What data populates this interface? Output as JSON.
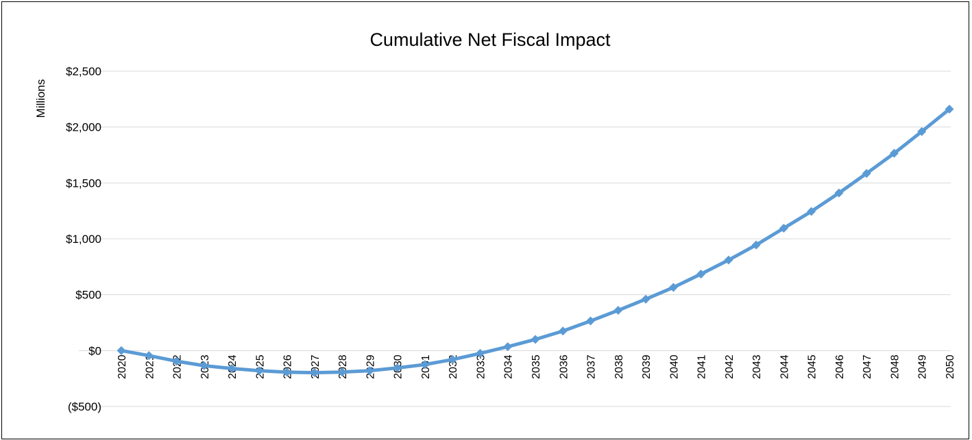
{
  "chart_data": {
    "type": "line",
    "title": "Cumulative Net Fiscal Impact",
    "xlabel": "",
    "ylabel": "Millions",
    "ylim": [
      -500,
      2500
    ],
    "y_ticks": [
      -500,
      0,
      500,
      1000,
      1500,
      2000,
      2500
    ],
    "y_tick_labels": [
      "($500)",
      "$0",
      "$500",
      "$1,000",
      "$1,500",
      "$2,000",
      "$2,500"
    ],
    "negative_tick_color": "#ff0000",
    "grid": true,
    "legend": "none",
    "series_color": "#5b9bd5",
    "x": [
      "2020",
      "2021",
      "2022",
      "2023",
      "2024",
      "2025",
      "2026",
      "2027",
      "2028",
      "2029",
      "2030",
      "2031",
      "2032",
      "2033",
      "2034",
      "2035",
      "2036",
      "2037",
      "2038",
      "2039",
      "2040",
      "2041",
      "2042",
      "2043",
      "2044",
      "2045",
      "2046",
      "2047",
      "2048",
      "2049",
      "2050"
    ],
    "series": [
      {
        "values": [
          0,
          -45,
          -95,
          -135,
          -160,
          -180,
          -193,
          -198,
          -192,
          -180,
          -155,
          -125,
          -80,
          -25,
          35,
          100,
          175,
          265,
          360,
          460,
          565,
          685,
          810,
          945,
          1095,
          1245,
          1410,
          1585,
          1765,
          1960,
          2160
        ]
      }
    ]
  }
}
